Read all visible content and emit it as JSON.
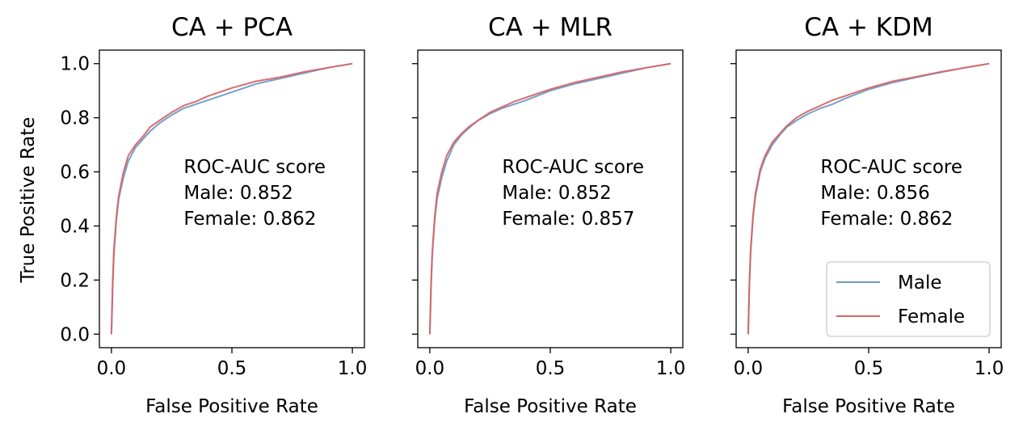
{
  "colors": {
    "male": "#6c9bc9",
    "female": "#d96464"
  },
  "ylabel": "True Positive Rate",
  "chart_data": [
    {
      "type": "line",
      "title": "CA + PCA",
      "xlabel": "False Positive Rate",
      "ylabel": "True Positive Rate",
      "xlim": [
        -0.05,
        1.05
      ],
      "ylim": [
        -0.05,
        1.05
      ],
      "xticks": [
        "0.0",
        "0.5",
        "1.0"
      ],
      "yticks": [
        "0.0",
        "0.2",
        "0.4",
        "0.6",
        "0.8",
        "1.0"
      ],
      "annotation": [
        "ROC-AUC score",
        "Male: 0.852",
        "Female: 0.862"
      ],
      "series": [
        {
          "name": "Male",
          "color": "#6c9bc9",
          "x": [
            0,
            0.005,
            0.01,
            0.02,
            0.03,
            0.05,
            0.07,
            0.1,
            0.13,
            0.16,
            0.2,
            0.25,
            0.3,
            0.35,
            0.4,
            0.5,
            0.6,
            0.7,
            0.8,
            0.9,
            1.0
          ],
          "y": [
            0,
            0.17,
            0.29,
            0.42,
            0.5,
            0.58,
            0.64,
            0.69,
            0.72,
            0.75,
            0.78,
            0.81,
            0.835,
            0.85,
            0.865,
            0.895,
            0.925,
            0.945,
            0.965,
            0.985,
            1.0
          ]
        },
        {
          "name": "Female",
          "color": "#d96464",
          "x": [
            0,
            0.005,
            0.01,
            0.02,
            0.03,
            0.05,
            0.07,
            0.1,
            0.13,
            0.16,
            0.2,
            0.25,
            0.3,
            0.35,
            0.4,
            0.5,
            0.6,
            0.7,
            0.8,
            0.9,
            1.0
          ],
          "y": [
            0,
            0.19,
            0.31,
            0.43,
            0.51,
            0.6,
            0.66,
            0.7,
            0.73,
            0.765,
            0.79,
            0.82,
            0.845,
            0.86,
            0.88,
            0.91,
            0.935,
            0.95,
            0.97,
            0.985,
            1.0
          ]
        }
      ]
    },
    {
      "type": "line",
      "title": "CA + MLR",
      "xlabel": "False Positive Rate",
      "xlim": [
        -0.05,
        1.05
      ],
      "ylim": [
        -0.05,
        1.05
      ],
      "xticks": [
        "0.0",
        "0.5",
        "1.0"
      ],
      "yticks": [
        "0.0",
        "0.2",
        "0.4",
        "0.6",
        "0.8",
        "1.0"
      ],
      "annotation": [
        "ROC-AUC score",
        "Male: 0.852",
        "Female: 0.857"
      ],
      "series": [
        {
          "name": "Male",
          "color": "#6c9bc9",
          "x": [
            0,
            0.005,
            0.01,
            0.02,
            0.03,
            0.05,
            0.07,
            0.1,
            0.13,
            0.16,
            0.2,
            0.25,
            0.3,
            0.35,
            0.4,
            0.5,
            0.6,
            0.7,
            0.8,
            0.9,
            1.0
          ],
          "y": [
            0,
            0.17,
            0.29,
            0.42,
            0.5,
            0.58,
            0.64,
            0.7,
            0.735,
            0.76,
            0.79,
            0.815,
            0.835,
            0.85,
            0.865,
            0.9,
            0.925,
            0.945,
            0.965,
            0.985,
            1.0
          ]
        },
        {
          "name": "Female",
          "color": "#d96464",
          "x": [
            0,
            0.005,
            0.01,
            0.02,
            0.03,
            0.05,
            0.07,
            0.1,
            0.13,
            0.16,
            0.2,
            0.25,
            0.3,
            0.35,
            0.4,
            0.5,
            0.6,
            0.7,
            0.8,
            0.9,
            1.0
          ],
          "y": [
            0,
            0.18,
            0.3,
            0.43,
            0.52,
            0.6,
            0.66,
            0.71,
            0.74,
            0.765,
            0.79,
            0.82,
            0.84,
            0.86,
            0.875,
            0.905,
            0.93,
            0.95,
            0.97,
            0.985,
            1.0
          ]
        }
      ]
    },
    {
      "type": "line",
      "title": "CA + KDM",
      "xlabel": "False Positive Rate",
      "xlim": [
        -0.05,
        1.05
      ],
      "ylim": [
        -0.05,
        1.05
      ],
      "xticks": [
        "0.0",
        "0.5",
        "1.0"
      ],
      "yticks": [
        "0.0",
        "0.2",
        "0.4",
        "0.6",
        "0.8",
        "1.0"
      ],
      "annotation": [
        "ROC-AUC score",
        "Male: 0.856",
        "Female: 0.862"
      ],
      "legend": {
        "position": "lower-right",
        "entries": [
          "Male",
          "Female"
        ]
      },
      "series": [
        {
          "name": "Male",
          "color": "#6c9bc9",
          "x": [
            0,
            0.005,
            0.01,
            0.02,
            0.03,
            0.05,
            0.07,
            0.1,
            0.13,
            0.16,
            0.2,
            0.25,
            0.3,
            0.35,
            0.4,
            0.5,
            0.6,
            0.7,
            0.8,
            0.9,
            1.0
          ],
          "y": [
            0,
            0.18,
            0.3,
            0.43,
            0.51,
            0.6,
            0.65,
            0.7,
            0.735,
            0.765,
            0.79,
            0.815,
            0.835,
            0.85,
            0.87,
            0.905,
            0.93,
            0.95,
            0.968,
            0.985,
            1.0
          ]
        },
        {
          "name": "Female",
          "color": "#d96464",
          "x": [
            0,
            0.005,
            0.01,
            0.02,
            0.03,
            0.05,
            0.07,
            0.1,
            0.13,
            0.16,
            0.2,
            0.25,
            0.3,
            0.35,
            0.4,
            0.5,
            0.6,
            0.7,
            0.8,
            0.9,
            1.0
          ],
          "y": [
            0,
            0.19,
            0.31,
            0.44,
            0.52,
            0.61,
            0.66,
            0.71,
            0.74,
            0.77,
            0.8,
            0.825,
            0.845,
            0.865,
            0.88,
            0.91,
            0.935,
            0.952,
            0.97,
            0.985,
            1.0
          ]
        }
      ]
    }
  ]
}
